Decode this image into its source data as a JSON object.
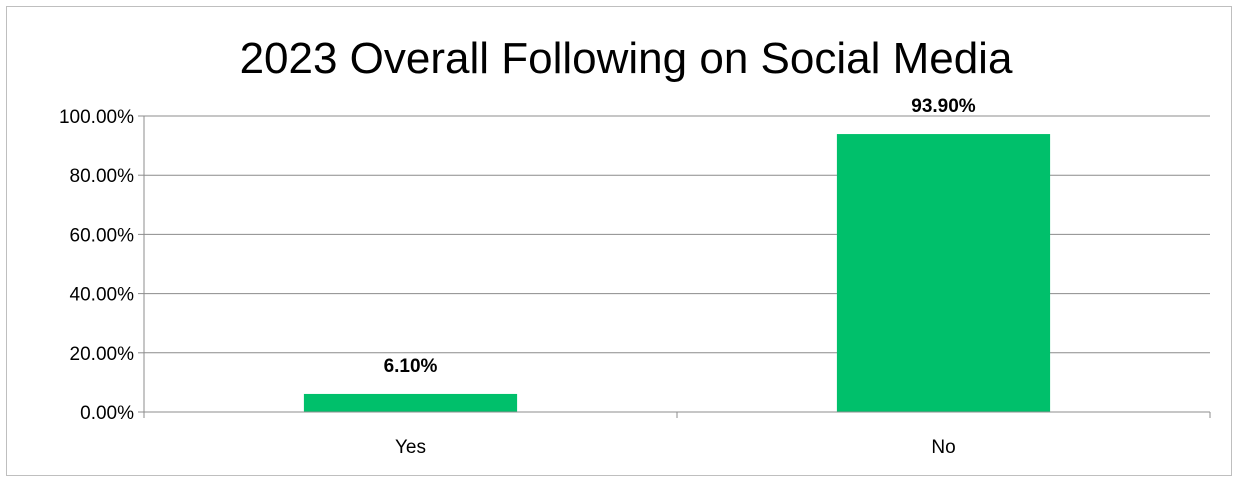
{
  "chart_data": {
    "type": "bar",
    "title": "2023 Overall Following on Social Media",
    "categories": [
      "Yes",
      "No"
    ],
    "values": [
      6.1,
      93.9
    ],
    "data_labels": [
      "6.10%",
      "93.90%"
    ],
    "yticks": [
      "0.00%",
      "20.00%",
      "40.00%",
      "60.00%",
      "80.00%",
      "100.00%"
    ],
    "ylim": [
      0,
      100
    ],
    "grid": true,
    "legend": "none",
    "bar_color": "#00c06b",
    "gridline_color": "#8c8c8c"
  }
}
